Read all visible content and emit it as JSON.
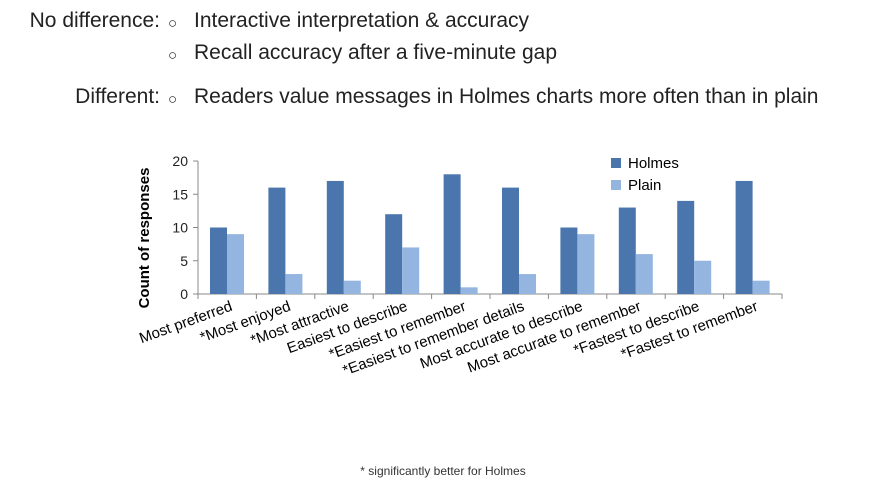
{
  "notes": {
    "no_difference_label": "No difference:",
    "no_difference_items": [
      "Interactive interpretation & accuracy",
      "Recall accuracy after a five-minute gap"
    ],
    "different_label": "Different:",
    "different_items": [
      "Readers value messages in Holmes charts more often than in plain"
    ],
    "bullet": "○"
  },
  "footnote": "* significantly better for Holmes",
  "colors": {
    "holmes": "#4a76ad",
    "plain": "#93b5e0",
    "axis": "#888888"
  },
  "chart_data": {
    "type": "bar",
    "ylabel": "Count of responses",
    "ylim": [
      0,
      20
    ],
    "yticks": [
      0,
      5,
      10,
      15,
      20
    ],
    "grid": false,
    "legend_position": "top-right",
    "categories": [
      "Most preferred",
      "*Most enjoyed",
      "*Most attractive",
      "Easiest to describe",
      "*Easiest to remember",
      "*Easiest to remember details",
      "Most accurate to describe",
      "Most accurate to remember",
      "*Fastest to describe",
      "*Fastest to remember"
    ],
    "series": [
      {
        "name": "Holmes",
        "values": [
          10,
          16,
          17,
          12,
          18,
          16,
          10,
          13,
          14,
          17
        ]
      },
      {
        "name": "Plain",
        "values": [
          9,
          3,
          2,
          7,
          1,
          3,
          9,
          6,
          5,
          2
        ]
      }
    ]
  }
}
